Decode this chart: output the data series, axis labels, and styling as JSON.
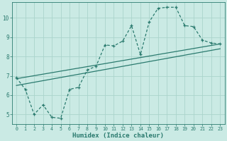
{
  "bg_color": "#caeae4",
  "grid_color": "#aad4cc",
  "line_color": "#2a7a6e",
  "xlabel": "Humidex (Indice chaleur)",
  "xlim": [
    -0.5,
    23.5
  ],
  "ylim": [
    4.5,
    10.8
  ],
  "yticks": [
    5,
    6,
    7,
    8,
    9,
    10
  ],
  "xticks": [
    0,
    1,
    2,
    3,
    4,
    5,
    6,
    7,
    8,
    9,
    10,
    11,
    12,
    13,
    14,
    15,
    16,
    17,
    18,
    19,
    20,
    21,
    22,
    23
  ],
  "curve_x": [
    0,
    1,
    2,
    3,
    4,
    5,
    6,
    7,
    8,
    9,
    10,
    11,
    12,
    13,
    14,
    15,
    16,
    17,
    18,
    19,
    20,
    21,
    22,
    23
  ],
  "curve_y": [
    6.9,
    6.3,
    5.0,
    5.5,
    4.85,
    4.8,
    6.3,
    6.4,
    7.3,
    7.5,
    8.6,
    8.55,
    8.8,
    9.6,
    8.1,
    9.8,
    10.5,
    10.55,
    10.55,
    9.6,
    9.55,
    8.85,
    8.7,
    8.65
  ],
  "trend1_x": [
    0,
    23
  ],
  "trend1_y": [
    6.85,
    8.65
  ],
  "trend2_x": [
    0,
    23
  ],
  "trend2_y": [
    6.5,
    8.4
  ]
}
